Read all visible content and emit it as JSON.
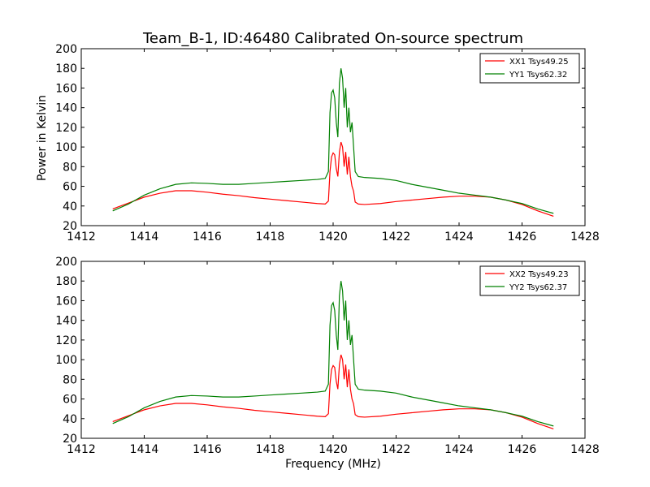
{
  "figure": {
    "title": "Team_B-1, ID:46480 Calibrated On-source spectrum",
    "xlabel": "Frequency (MHz)",
    "ylabel": "Power in Kelvin"
  },
  "chart_data": [
    {
      "type": "line",
      "xlim": [
        1412,
        1428
      ],
      "ylim": [
        20,
        200
      ],
      "xticks": [
        "1412",
        "1414",
        "1416",
        "1418",
        "1420",
        "1422",
        "1424",
        "1426",
        "1428"
      ],
      "yticks": [
        "20",
        "40",
        "60",
        "80",
        "100",
        "120",
        "140",
        "160",
        "180",
        "200"
      ],
      "grid": false,
      "legend_position": "top-right",
      "series": [
        {
          "name": "XX1 Tsys49.25",
          "color": "#ff0000",
          "points": [
            [
              1413.0,
              37
            ],
            [
              1413.5,
              43
            ],
            [
              1414.0,
              49
            ],
            [
              1414.5,
              53
            ],
            [
              1415.0,
              55.5
            ],
            [
              1415.5,
              55.5
            ],
            [
              1416.0,
              54
            ],
            [
              1416.5,
              52
            ],
            [
              1417.0,
              50.5
            ],
            [
              1417.5,
              48.5
            ],
            [
              1418.0,
              47
            ],
            [
              1418.5,
              45.5
            ],
            [
              1419.0,
              44
            ],
            [
              1419.5,
              42.5
            ],
            [
              1419.75,
              42
            ],
            [
              1419.85,
              45
            ],
            [
              1419.9,
              75
            ],
            [
              1419.95,
              90
            ],
            [
              1420.0,
              94
            ],
            [
              1420.05,
              92
            ],
            [
              1420.1,
              78
            ],
            [
              1420.15,
              70
            ],
            [
              1420.2,
              95
            ],
            [
              1420.25,
              105
            ],
            [
              1420.3,
              100
            ],
            [
              1420.35,
              80
            ],
            [
              1420.4,
              95
            ],
            [
              1420.45,
              72
            ],
            [
              1420.5,
              90
            ],
            [
              1420.55,
              70
            ],
            [
              1420.6,
              60
            ],
            [
              1420.65,
              55
            ],
            [
              1420.7,
              44
            ],
            [
              1420.8,
              42
            ],
            [
              1421.0,
              41.5
            ],
            [
              1421.5,
              42.5
            ],
            [
              1422.0,
              44.5
            ],
            [
              1422.5,
              46
            ],
            [
              1423.0,
              47.5
            ],
            [
              1423.5,
              49
            ],
            [
              1424.0,
              50
            ],
            [
              1424.5,
              50
            ],
            [
              1425.0,
              49
            ],
            [
              1425.5,
              46
            ],
            [
              1426.0,
              41.5
            ],
            [
              1426.5,
              35
            ],
            [
              1427.0,
              29.5
            ]
          ]
        },
        {
          "name": "YY1 Tsys62.32",
          "color": "#008000",
          "points": [
            [
              1413.0,
              35
            ],
            [
              1413.5,
              42
            ],
            [
              1414.0,
              51
            ],
            [
              1414.5,
              57.5
            ],
            [
              1415.0,
              62
            ],
            [
              1415.5,
              63.5
            ],
            [
              1416.0,
              63
            ],
            [
              1416.5,
              62
            ],
            [
              1417.0,
              62
            ],
            [
              1417.5,
              63
            ],
            [
              1418.0,
              64
            ],
            [
              1418.5,
              65
            ],
            [
              1419.0,
              66
            ],
            [
              1419.5,
              67
            ],
            [
              1419.75,
              68
            ],
            [
              1419.85,
              75
            ],
            [
              1419.9,
              135
            ],
            [
              1419.95,
              155
            ],
            [
              1420.0,
              158
            ],
            [
              1420.05,
              150
            ],
            [
              1420.1,
              125
            ],
            [
              1420.15,
              110
            ],
            [
              1420.2,
              165
            ],
            [
              1420.25,
              180
            ],
            [
              1420.3,
              170
            ],
            [
              1420.35,
              140
            ],
            [
              1420.4,
              160
            ],
            [
              1420.45,
              120
            ],
            [
              1420.5,
              140
            ],
            [
              1420.55,
              115
            ],
            [
              1420.6,
              125
            ],
            [
              1420.65,
              100
            ],
            [
              1420.7,
              75
            ],
            [
              1420.8,
              70
            ],
            [
              1421.0,
              69
            ],
            [
              1421.5,
              68
            ],
            [
              1422.0,
              66
            ],
            [
              1422.5,
              62
            ],
            [
              1423.0,
              59
            ],
            [
              1423.5,
              56
            ],
            [
              1424.0,
              53
            ],
            [
              1424.5,
              51
            ],
            [
              1425.0,
              49
            ],
            [
              1425.5,
              46
            ],
            [
              1426.0,
              42.5
            ],
            [
              1426.5,
              37
            ],
            [
              1427.0,
              32.5
            ]
          ]
        }
      ]
    },
    {
      "type": "line",
      "xlim": [
        1412,
        1428
      ],
      "ylim": [
        20,
        200
      ],
      "xticks": [
        "1412",
        "1414",
        "1416",
        "1418",
        "1420",
        "1422",
        "1424",
        "1426",
        "1428"
      ],
      "yticks": [
        "20",
        "40",
        "60",
        "80",
        "100",
        "120",
        "140",
        "160",
        "180",
        "200"
      ],
      "grid": false,
      "legend_position": "top-right",
      "series": [
        {
          "name": "XX2 Tsys49.23",
          "color": "#ff0000",
          "points": [
            [
              1413.0,
              37
            ],
            [
              1413.5,
              43
            ],
            [
              1414.0,
              49
            ],
            [
              1414.5,
              53
            ],
            [
              1415.0,
              55.5
            ],
            [
              1415.5,
              55.5
            ],
            [
              1416.0,
              54
            ],
            [
              1416.5,
              52
            ],
            [
              1417.0,
              50.5
            ],
            [
              1417.5,
              48.5
            ],
            [
              1418.0,
              47
            ],
            [
              1418.5,
              45.5
            ],
            [
              1419.0,
              44
            ],
            [
              1419.5,
              42.5
            ],
            [
              1419.75,
              42
            ],
            [
              1419.85,
              45
            ],
            [
              1419.9,
              75
            ],
            [
              1419.95,
              90
            ],
            [
              1420.0,
              94
            ],
            [
              1420.05,
              92
            ],
            [
              1420.1,
              78
            ],
            [
              1420.15,
              70
            ],
            [
              1420.2,
              95
            ],
            [
              1420.25,
              105
            ],
            [
              1420.3,
              100
            ],
            [
              1420.35,
              80
            ],
            [
              1420.4,
              95
            ],
            [
              1420.45,
              72
            ],
            [
              1420.5,
              90
            ],
            [
              1420.55,
              70
            ],
            [
              1420.6,
              60
            ],
            [
              1420.65,
              55
            ],
            [
              1420.7,
              44
            ],
            [
              1420.8,
              42
            ],
            [
              1421.0,
              41.5
            ],
            [
              1421.5,
              42.5
            ],
            [
              1422.0,
              44.5
            ],
            [
              1422.5,
              46
            ],
            [
              1423.0,
              47.5
            ],
            [
              1423.5,
              49
            ],
            [
              1424.0,
              50
            ],
            [
              1424.5,
              50
            ],
            [
              1425.0,
              49
            ],
            [
              1425.5,
              46
            ],
            [
              1426.0,
              41.5
            ],
            [
              1426.5,
              35
            ],
            [
              1427.0,
              29.5
            ]
          ]
        },
        {
          "name": "YY2 Tsys62.37",
          "color": "#008000",
          "points": [
            [
              1413.0,
              35
            ],
            [
              1413.5,
              42
            ],
            [
              1414.0,
              51
            ],
            [
              1414.5,
              57.5
            ],
            [
              1415.0,
              62
            ],
            [
              1415.5,
              63.5
            ],
            [
              1416.0,
              63
            ],
            [
              1416.5,
              62
            ],
            [
              1417.0,
              62
            ],
            [
              1417.5,
              63
            ],
            [
              1418.0,
              64
            ],
            [
              1418.5,
              65
            ],
            [
              1419.0,
              66
            ],
            [
              1419.5,
              67
            ],
            [
              1419.75,
              68
            ],
            [
              1419.85,
              75
            ],
            [
              1419.9,
              135
            ],
            [
              1419.95,
              155
            ],
            [
              1420.0,
              158
            ],
            [
              1420.05,
              150
            ],
            [
              1420.1,
              125
            ],
            [
              1420.15,
              110
            ],
            [
              1420.2,
              165
            ],
            [
              1420.25,
              180
            ],
            [
              1420.3,
              170
            ],
            [
              1420.35,
              140
            ],
            [
              1420.4,
              160
            ],
            [
              1420.45,
              120
            ],
            [
              1420.5,
              140
            ],
            [
              1420.55,
              115
            ],
            [
              1420.6,
              125
            ],
            [
              1420.65,
              100
            ],
            [
              1420.7,
              75
            ],
            [
              1420.8,
              70
            ],
            [
              1421.0,
              69
            ],
            [
              1421.5,
              68
            ],
            [
              1422.0,
              66
            ],
            [
              1422.5,
              62
            ],
            [
              1423.0,
              59
            ],
            [
              1423.5,
              56
            ],
            [
              1424.0,
              53
            ],
            [
              1424.5,
              51
            ],
            [
              1425.0,
              49
            ],
            [
              1425.5,
              46
            ],
            [
              1426.0,
              42.5
            ],
            [
              1426.5,
              37
            ],
            [
              1427.0,
              32.5
            ]
          ]
        }
      ]
    }
  ]
}
